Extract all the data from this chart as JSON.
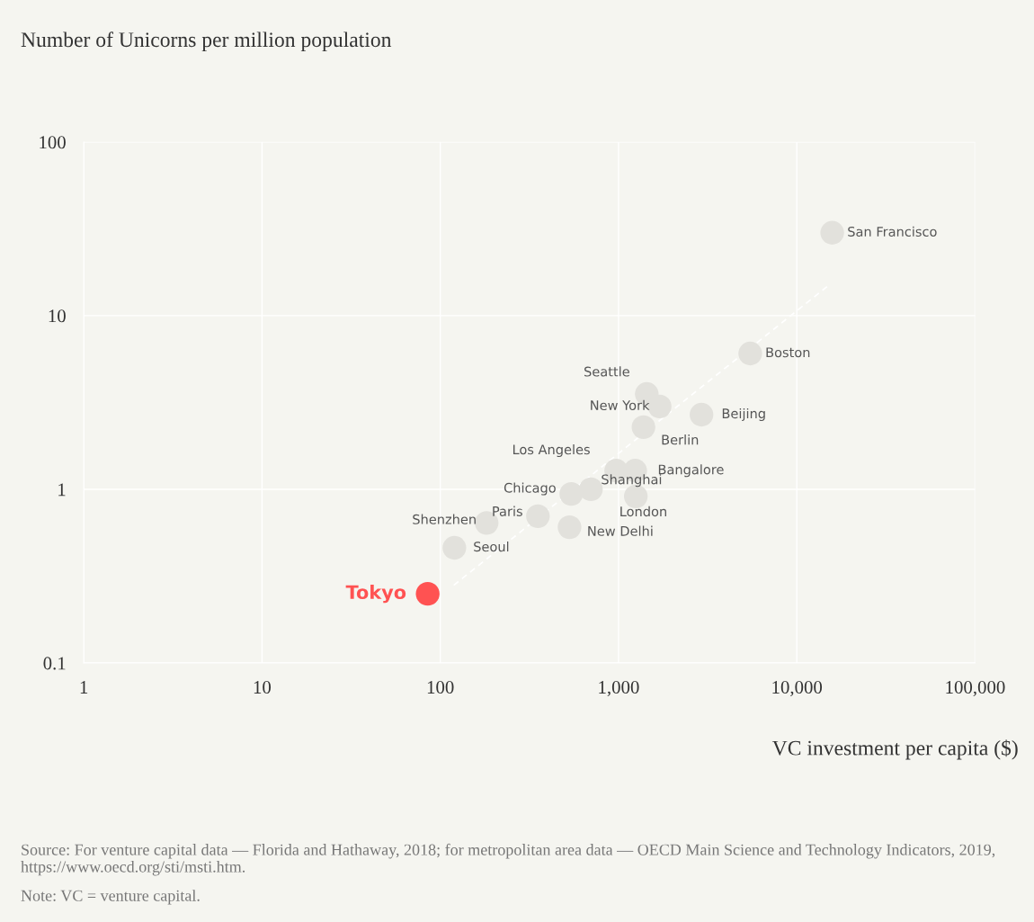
{
  "chart_data": {
    "type": "scatter",
    "ylabel": "Number of Unicorns per million population",
    "xlabel": "VC investment per capita ($)",
    "log": "xy",
    "grid": true,
    "legend": false,
    "marker": "circle",
    "xlim": [
      1,
      100000
    ],
    "xticks": [
      1,
      10,
      100,
      {
        "value": 1000,
        "label": "1,000"
      },
      {
        "value": 10000,
        "label": "10,000"
      },
      {
        "value": 100000,
        "label": "100,000"
      }
    ],
    "ylim": [
      0.1,
      100
    ],
    "yticks": [
      0.1,
      1,
      10,
      100
    ],
    "series": [
      {
        "name": "San Francisco",
        "color": "#e2e1dc",
        "x": [
          15800
        ],
        "values": [
          30
        ]
      },
      {
        "name": "Boston",
        "color": "#e2e1dc",
        "x": [
          5480
        ],
        "values": [
          6.05
        ]
      },
      {
        "name": "Seattle",
        "color": "#e2e1dc",
        "x": [
          1440
        ],
        "values": [
          3.54
        ]
      },
      {
        "name": "New York",
        "color": "#e2e1dc",
        "x": [
          1700
        ],
        "values": [
          3.0
        ]
      },
      {
        "name": "Beijing",
        "color": "#e2e1dc",
        "x": [
          2920
        ],
        "values": [
          2.69
        ]
      },
      {
        "name": "Berlin",
        "color": "#e2e1dc",
        "x": [
          1380
        ],
        "values": [
          2.28
        ]
      },
      {
        "name": "Los Angeles",
        "color": "#e2e1dc",
        "x": [
          970
        ],
        "values": [
          1.28
        ]
      },
      {
        "name": "Bangalore",
        "color": "#e2e1dc",
        "x": [
          1240
        ],
        "values": [
          1.28
        ]
      },
      {
        "name": "Shanghai",
        "color": "#e2e1dc",
        "x": [
          700
        ],
        "values": [
          1.0
        ]
      },
      {
        "name": "Chicago",
        "color": "#e2e1dc",
        "x": [
          543
        ],
        "values": [
          0.94
        ]
      },
      {
        "name": "London",
        "color": "#e2e1dc",
        "x": [
          1250
        ],
        "values": [
          0.91
        ]
      },
      {
        "name": "Paris",
        "color": "#e2e1dc",
        "x": [
          353
        ],
        "values": [
          0.7
        ]
      },
      {
        "name": "New Delhi",
        "color": "#e2e1dc",
        "x": [
          531
        ],
        "values": [
          0.605
        ]
      },
      {
        "name": "Shenzhen",
        "color": "#e2e1dc",
        "x": [
          182
        ],
        "values": [
          0.64
        ]
      },
      {
        "name": "Seoul",
        "color": "#e2e1dc",
        "x": [
          120
        ],
        "values": [
          0.46
        ]
      },
      {
        "name": "Tokyo",
        "color": "#ff5252",
        "x": [
          85
        ],
        "values": [
          0.25
        ]
      },
      {
        "type": "line",
        "color": "#ffffff",
        "line_style": "dashed",
        "marker": "none",
        "x": [
          119,
          15400
        ],
        "values": [
          0.28,
          15.2
        ]
      }
    ],
    "annotations": [
      "Source: For venture capital data — Florida and Hathaway, 2018; for metropolitan area data — OECD Main Science and Technology Indicators, 2019, https://www.oecd.org/sti/msti.htm.",
      "Note: VC = venture capital."
    ]
  }
}
